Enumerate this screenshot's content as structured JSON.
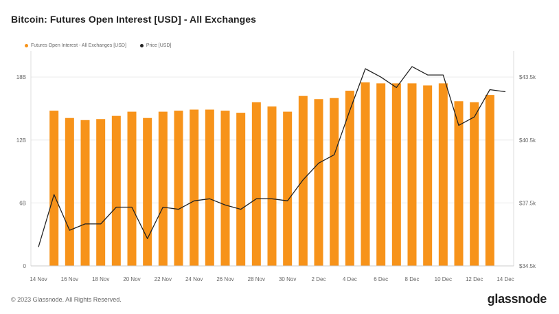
{
  "title": "Bitcoin: Futures Open Interest [USD] - All Exchanges",
  "legend": {
    "series_a": "Futures Open Interest - All Exchanges [USD]",
    "series_b": "Price [USD]"
  },
  "footer": "© 2023 Glassnode. All Rights Reserved.",
  "brand": "glassnode",
  "colors": {
    "bar": "#F7931A",
    "line": "#222222",
    "grid": "#e6e6e6"
  },
  "chart_data": {
    "type": "bar",
    "title": "Bitcoin: Futures Open Interest [USD] - All Exchanges",
    "x": [
      "14 Nov",
      "15 Nov",
      "16 Nov",
      "17 Nov",
      "18 Nov",
      "19 Nov",
      "20 Nov",
      "21 Nov",
      "22 Nov",
      "23 Nov",
      "24 Nov",
      "25 Nov",
      "26 Nov",
      "27 Nov",
      "28 Nov",
      "29 Nov",
      "30 Nov",
      "1 Dec",
      "2 Dec",
      "3 Dec",
      "4 Dec",
      "5 Dec",
      "6 Dec",
      "7 Dec",
      "8 Dec",
      "9 Dec",
      "10 Dec",
      "11 Dec",
      "12 Dec",
      "13 Dec",
      "14 Dec"
    ],
    "x_tick_labels": [
      "14 Nov",
      "16 Nov",
      "18 Nov",
      "20 Nov",
      "22 Nov",
      "24 Nov",
      "26 Nov",
      "28 Nov",
      "30 Nov",
      "2 Dec",
      "4 Dec",
      "6 Dec",
      "8 Dec",
      "10 Dec",
      "12 Dec",
      "14 Dec"
    ],
    "y_left_ticks": [
      {
        "value": 0,
        "label": "0"
      },
      {
        "value": 6,
        "label": "6B"
      },
      {
        "value": 12,
        "label": "12B"
      },
      {
        "value": 18,
        "label": "18B"
      }
    ],
    "y_right_ticks": [
      {
        "value": 34500,
        "label": "$34.5k"
      },
      {
        "value": 37500,
        "label": "$37.5k"
      },
      {
        "value": 40500,
        "label": "$40.5k"
      },
      {
        "value": 43500,
        "label": "$43.5k"
      }
    ],
    "y_left_range": [
      0,
      20.5
    ],
    "y_right_range": [
      34500,
      44750
    ],
    "series": [
      {
        "name": "Futures Open Interest - All Exchanges [USD]",
        "type": "bar",
        "axis": "left",
        "values": [
          null,
          14.8,
          14.1,
          13.9,
          14.0,
          14.3,
          14.7,
          14.1,
          14.7,
          14.8,
          14.9,
          14.9,
          14.8,
          14.6,
          15.6,
          15.2,
          14.7,
          16.2,
          15.9,
          16.0,
          16.7,
          17.5,
          17.4,
          17.4,
          17.4,
          17.2,
          17.4,
          15.7,
          15.6,
          16.3,
          null
        ]
      },
      {
        "name": "Price [USD]",
        "type": "line",
        "axis": "right",
        "values": [
          35400,
          37900,
          36200,
          36500,
          36500,
          37300,
          37300,
          35800,
          37300,
          37200,
          37600,
          37700,
          37400,
          37200,
          37700,
          37700,
          37600,
          38600,
          39400,
          39800,
          41900,
          43900,
          43500,
          43000,
          44000,
          43600,
          43600,
          41200,
          41600,
          42900,
          42800
        ]
      }
    ]
  }
}
